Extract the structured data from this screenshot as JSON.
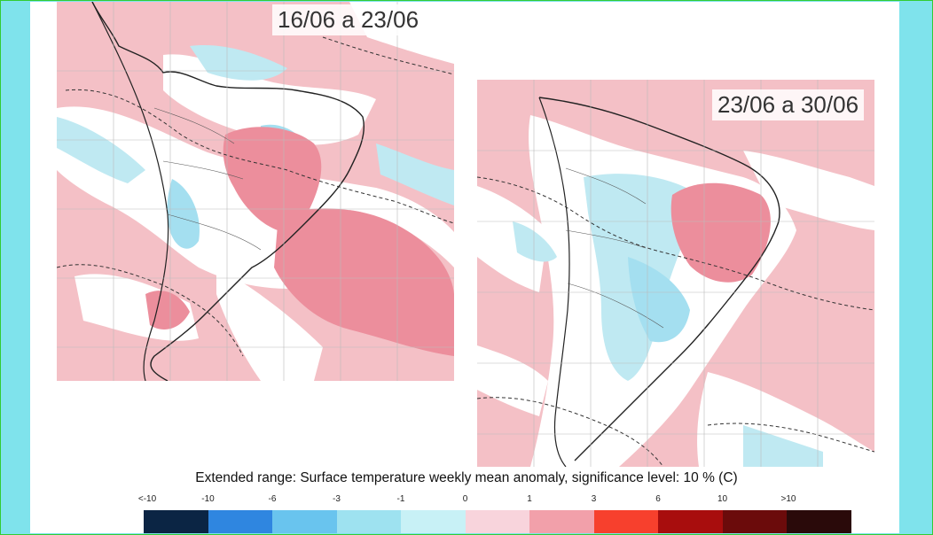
{
  "panels": [
    {
      "label": "16/06 a 23/06"
    },
    {
      "label": "23/06 a 30/06"
    }
  ],
  "caption": "Extended range: Surface temperature weekly mean anomaly, significance level: 10 % (C)",
  "legend": {
    "ticks": [
      "<-10",
      "-10",
      "-6",
      "-3",
      "-1",
      "0",
      "1",
      "3",
      "6",
      "10",
      ">10"
    ],
    "colors": [
      "#0b2544",
      "#2f86e0",
      "#69c4ee",
      "#9ee2f0",
      "#c8f1f6",
      "#f8d4dc",
      "#f2a0aa",
      "#f7402d",
      "#a80d0d",
      "#6b0b0b",
      "#2a0a0a"
    ]
  },
  "colors": {
    "warm_fill": "#f4c0c6",
    "strong_warm": "#ec8e9c",
    "neutral": "#ffffff",
    "cool_fill": "#bfe9f2",
    "cooler": "#a4dff0"
  }
}
